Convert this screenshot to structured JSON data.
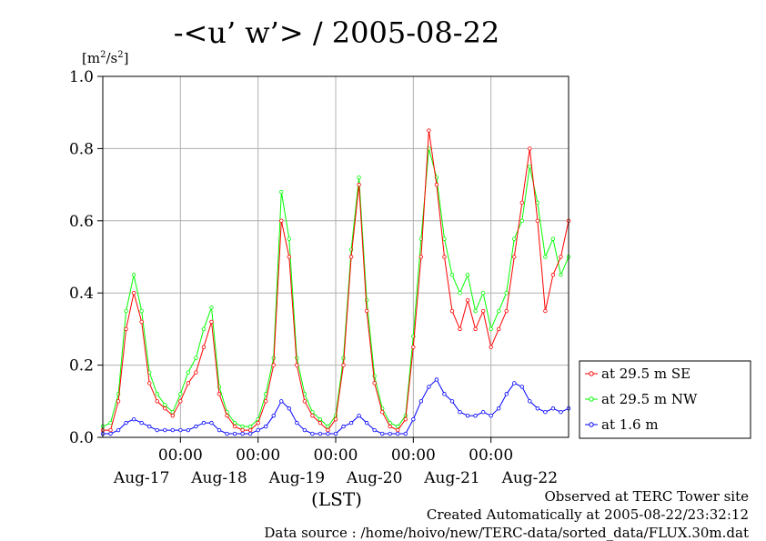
{
  "header": {
    "title": "-<u’ w’> / 2005-08-22",
    "unit_prefix": "[m",
    "unit_sup1": "2",
    "unit_mid": "/s",
    "unit_sup2": "2",
    "unit_suffix": "]"
  },
  "footer": {
    "observed": "Observed at TERC Tower site",
    "created": "Created Automatically at 2005-08-22/23:32:12",
    "source": "Data source : /home/hoivo/new/TERC-data/sorted_data/FLUX.30m.dat"
  },
  "colors": {
    "se": "#ff0000",
    "nw": "#00ff00",
    "low": "#0000ff",
    "grid": "#b0b0b0"
  },
  "chart_data": {
    "type": "line",
    "ylim": [
      0,
      1.0
    ],
    "xlim_days": [
      0,
      6
    ],
    "yticks": [
      "0.0",
      "0.2",
      "0.4",
      "0.6",
      "0.8",
      "1.0"
    ],
    "xtick_time_label": "00:00",
    "xtick_date_labels": [
      "Aug-17",
      "Aug-18",
      "Aug-19",
      "Aug-20",
      "Aug-21",
      "Aug-22"
    ],
    "xlabel": "(LST)",
    "grid": true,
    "legend_position": "right",
    "series": [
      {
        "name": "at 29.5 m SE",
        "x": [
          0.0,
          0.1,
          0.2,
          0.3,
          0.4,
          0.5,
          0.6,
          0.7,
          0.8,
          0.9,
          1.0,
          1.1,
          1.2,
          1.3,
          1.4,
          1.5,
          1.6,
          1.7,
          1.8,
          1.9,
          2.0,
          2.1,
          2.2,
          2.3,
          2.4,
          2.5,
          2.6,
          2.7,
          2.8,
          2.9,
          3.0,
          3.1,
          3.2,
          3.3,
          3.4,
          3.5,
          3.6,
          3.7,
          3.8,
          3.9,
          4.0,
          4.1,
          4.2,
          4.3,
          4.4,
          4.5,
          4.6,
          4.7,
          4.8,
          4.9,
          5.0,
          5.1,
          5.2,
          5.3,
          5.4,
          5.5,
          5.6,
          5.7,
          5.8,
          5.9,
          6.0
        ],
        "y": [
          0.02,
          0.02,
          0.1,
          0.3,
          0.4,
          0.32,
          0.15,
          0.1,
          0.08,
          0.06,
          0.1,
          0.15,
          0.18,
          0.25,
          0.32,
          0.12,
          0.06,
          0.03,
          0.02,
          0.02,
          0.04,
          0.1,
          0.2,
          0.6,
          0.5,
          0.2,
          0.1,
          0.06,
          0.04,
          0.02,
          0.05,
          0.2,
          0.5,
          0.7,
          0.35,
          0.15,
          0.07,
          0.03,
          0.02,
          0.05,
          0.25,
          0.5,
          0.85,
          0.7,
          0.5,
          0.35,
          0.3,
          0.38,
          0.3,
          0.35,
          0.25,
          0.3,
          0.35,
          0.5,
          0.65,
          0.8,
          0.6,
          0.35,
          0.45,
          0.5,
          0.6
        ]
      },
      {
        "name": "at 29.5 m NW",
        "x": [
          0.0,
          0.1,
          0.2,
          0.3,
          0.4,
          0.5,
          0.6,
          0.7,
          0.8,
          0.9,
          1.0,
          1.1,
          1.2,
          1.3,
          1.4,
          1.5,
          1.6,
          1.7,
          1.8,
          1.9,
          2.0,
          2.1,
          2.2,
          2.3,
          2.4,
          2.5,
          2.6,
          2.7,
          2.8,
          2.9,
          3.0,
          3.1,
          3.2,
          3.3,
          3.4,
          3.5,
          3.6,
          3.7,
          3.8,
          3.9,
          4.0,
          4.1,
          4.2,
          4.3,
          4.4,
          4.5,
          4.6,
          4.7,
          4.8,
          4.9,
          5.0,
          5.1,
          5.2,
          5.3,
          5.4,
          5.5,
          5.6,
          5.7,
          5.8,
          5.9,
          6.0
        ],
        "y": [
          0.03,
          0.04,
          0.12,
          0.35,
          0.45,
          0.35,
          0.18,
          0.12,
          0.09,
          0.07,
          0.12,
          0.18,
          0.22,
          0.3,
          0.36,
          0.14,
          0.07,
          0.04,
          0.03,
          0.03,
          0.05,
          0.12,
          0.22,
          0.68,
          0.55,
          0.22,
          0.12,
          0.07,
          0.05,
          0.03,
          0.06,
          0.22,
          0.52,
          0.72,
          0.38,
          0.17,
          0.08,
          0.04,
          0.03,
          0.06,
          0.28,
          0.55,
          0.8,
          0.72,
          0.55,
          0.45,
          0.4,
          0.45,
          0.35,
          0.4,
          0.3,
          0.35,
          0.4,
          0.55,
          0.6,
          0.75,
          0.65,
          0.5,
          0.55,
          0.45,
          0.5
        ]
      },
      {
        "name": "at 1.6 m",
        "x": [
          0.0,
          0.1,
          0.2,
          0.3,
          0.4,
          0.5,
          0.6,
          0.7,
          0.8,
          0.9,
          1.0,
          1.1,
          1.2,
          1.3,
          1.4,
          1.5,
          1.6,
          1.7,
          1.8,
          1.9,
          2.0,
          2.1,
          2.2,
          2.3,
          2.4,
          2.5,
          2.6,
          2.7,
          2.8,
          2.9,
          3.0,
          3.1,
          3.2,
          3.3,
          3.4,
          3.5,
          3.6,
          3.7,
          3.8,
          3.9,
          4.0,
          4.1,
          4.2,
          4.3,
          4.4,
          4.5,
          4.6,
          4.7,
          4.8,
          4.9,
          5.0,
          5.1,
          5.2,
          5.3,
          5.4,
          5.5,
          5.6,
          5.7,
          5.8,
          5.9,
          6.0
        ],
        "y": [
          0.01,
          0.01,
          0.02,
          0.04,
          0.05,
          0.04,
          0.03,
          0.02,
          0.02,
          0.02,
          0.02,
          0.02,
          0.03,
          0.04,
          0.04,
          0.02,
          0.01,
          0.01,
          0.01,
          0.01,
          0.02,
          0.03,
          0.06,
          0.1,
          0.08,
          0.04,
          0.02,
          0.01,
          0.01,
          0.01,
          0.01,
          0.03,
          0.04,
          0.06,
          0.04,
          0.02,
          0.01,
          0.01,
          0.01,
          0.01,
          0.05,
          0.1,
          0.14,
          0.16,
          0.12,
          0.1,
          0.07,
          0.06,
          0.06,
          0.07,
          0.06,
          0.08,
          0.12,
          0.15,
          0.14,
          0.1,
          0.08,
          0.07,
          0.08,
          0.07,
          0.08
        ]
      }
    ]
  }
}
